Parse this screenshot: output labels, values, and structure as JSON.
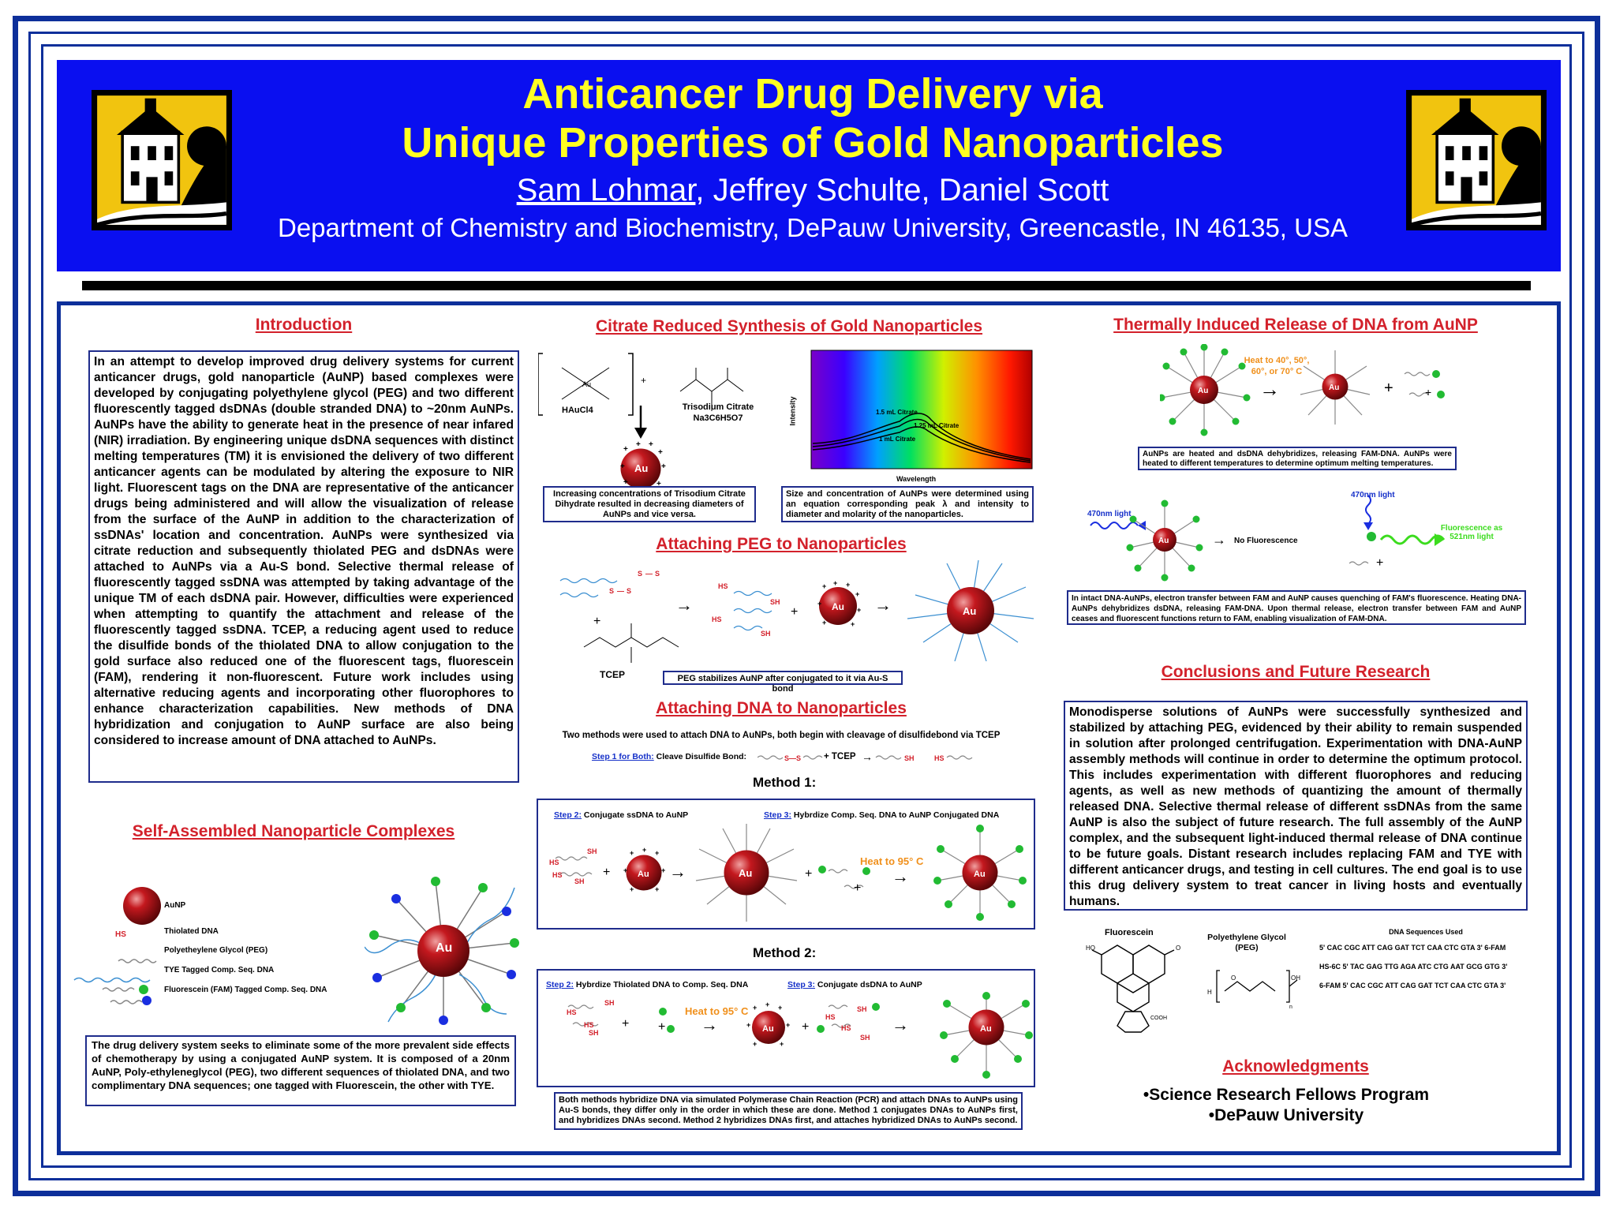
{
  "header": {
    "title_line1": "Anticancer Drug Delivery via",
    "title_line2": "Unique Properties of Gold Nanoparticles",
    "presenting_author": "Sam Lohmar",
    "other_authors": ", Jeffrey Schulte, Daniel Scott",
    "department": "Department of Chemistry and Biochemistry, DePauw University, Greencastle, IN 46135, USA"
  },
  "intro": {
    "title": "Introduction",
    "text": "In an attempt to develop improved drug delivery systems for current anticancer drugs, gold nanoparticle (AuNP) based complexes were developed by conjugating polyethylene glycol (PEG) and two different fluorescently tagged dsDNAs (double stranded DNA) to ~20nm AuNPs. AuNPs have the ability to generate heat in the presence of near infared (NIR) irradiation. By engineering unique dsDNA sequences with distinct melting temperatures (TM) it is envisioned the delivery of two different anticancer agents can be modulated by altering the exposure to NIR light. Fluorescent tags on the DNA are representative of the anticancer drugs being administered and will allow the visualization of release from the surface of the AuNP in addition to the characterization of ssDNAs' location and concentration. AuNPs were synthesized via citrate reduction and subsequently thiolated PEG and dsDNAs were attached to AuNPs via a Au-S bond. Selective thermal release of fluorescently tagged ssDNA was attempted by taking advantage of the unique TM of each dsDNA pair. However, difficulties were experienced when attempting to quantify the attachment and release of the fluorescently tagged ssDNA. TCEP, a reducing agent used to reduce the disulfide bonds of the thiolated DNA to allow conjugation to the gold surface also reduced one of the fluorescent tags, fluorescein (FAM), rendering it non-fluorescent. Future work includes using alternative reducing agents and incorporating other fluorophores to enhance characterization capabilities. New methods of DNA hybridization and conjugation to AuNP surface are also being considered to increase amount of DNA attached to AuNPs."
  },
  "self_assembled": {
    "title": "Self-Assembled Nanoparticle Complexes",
    "legend": [
      "AuNP",
      "Thiolated DNA",
      "Polyetheylene Glycol (PEG)",
      "TYE Tagged Comp. Seq. DNA",
      "Fluorescein (FAM) Tagged Comp. Seq. DNA"
    ],
    "hs": "HS",
    "au": "Au",
    "text": "The drug delivery system seeks to eliminate some of the more prevalent side effects of chemotherapy by using a conjugated AuNP system. It is composed of a 20nm AuNP, Poly-ethyleneglycol (PEG), two different sequences of thiolated DNA, and two complimentary DNA sequences; one tagged with Fluorescein, the other with TYE."
  },
  "synthesis": {
    "title": "Citrate Reduced Synthesis of Gold Nanoparticles",
    "haucl4": "HAuCl4",
    "citrate": "Trisodium Citrate",
    "citrate_formula": "Na3C6H5O7",
    "caption1": "Increasing concentrations of Trisodium Citrate Dihydrate resulted in decreasing diameters of AuNPs and vice versa.",
    "caption2": "Size and concentration of AuNPs were determined using an equation corresponding peak λ and intensity to diameter and molarity of the nanoparticles.",
    "xlabel": "Wavelength",
    "ylabel": "Intensity",
    "curve_labels": [
      "1.5 mL Citrate",
      "1.25 mL Citrate",
      "1 mL Citrate"
    ]
  },
  "peg": {
    "title": "Attaching PEG to Nanoparticles",
    "tcep": "TCEP",
    "caption": "PEG stabilizes AuNP after conjugated to it via Au-S bond"
  },
  "dna": {
    "title": "Attaching DNA to Nanoparticles",
    "intro": "Two methods were used to attach DNA to AuNPs, both begin with cleavage of disulfidebond via TCEP",
    "step1_label": "Step 1 for Both:",
    "step1_text": " Cleave Disulfide Bond:",
    "tcep_plus": "+ TCEP",
    "method1": "Method 1:",
    "m1_step2_label": "Step 2:",
    "m1_step2_text": " Conjugate ssDNA to AuNP",
    "m1_step3_label": "Step 3:",
    "m1_step3_text": " Hybrdize Comp. Seq. DNA to AuNP Conjugated DNA",
    "heat": "Heat to 95° C",
    "method2": "Method 2:",
    "m2_step2_label": "Step 2:",
    "m2_step2_text": " Hybrdize Thiolated  DNA to Comp. Seq. DNA",
    "m2_step3_label": "Step 3:",
    "m2_step3_text": " Conjugate dsDNA to AuNP",
    "caption": "Both methods hybridize DNA via simulated Polymerase Chain Reaction (PCR) and attach DNAs to AuNPs using Au-S bonds, they differ only in the order in which these are done. Method 1 conjugates DNAs to AuNPs first, and hybridizes DNAs second. Method 2 hybridizes DNAs first, and attaches hybridized DNAs to AuNPs second."
  },
  "thermal": {
    "title": "Thermally Induced Release of DNA from AuNP",
    "heat": "Heat to 40°, 50°, 60°, or 70° C",
    "caption1": "AuNPs are heated and dsDNA dehybridizes, releasing FAM-DNA. AuNPs were heated to different temperatures to determine optimum melting temperatures.",
    "light1": "470nm light",
    "no_fluor": "No Fluorescence",
    "light2": "470nm light",
    "fluor": "Fluorescence as 521nm light",
    "caption2": "In intact DNA-AuNPs, electron transfer between FAM and AuNP causes quenching of FAM's fluorescence. Heating DNA-AuNPs dehybridizes dsDNA, releasing FAM-DNA. Upon thermal release, electron transfer between FAM and AuNP ceases and fluorescent functions return to FAM, enabling visualization of FAM-DNA."
  },
  "conclusions": {
    "title": "Conclusions and Future Research",
    "text": "Monodisperse solutions of AuNPs were successfully synthesized and stabilized by attaching PEG, evidenced by their ability to remain suspended in solution after prolonged centrifugation. Experimentation with DNA-AuNP assembly methods will continue in order to determine the optimum protocol. This includes experimentation with different fluorophores and reducing agents, as well as new methods of quantizing the amount of thermally released DNA. Selective thermal release of different ssDNAs from the same AuNP is also the subject of future research. The full assembly of the AuNP complex, and the subsequent light-induced thermal release of DNA continue to be future goals. Distant research includes replacing FAM and TYE with different anticancer drugs, and testing in cell cultures. The end goal is to use this drug delivery system to treat cancer in living hosts and eventually humans.",
    "fluorescein": "Fluorescein",
    "peg_line1": "Polyethylene Glycol",
    "peg_line2": "(PEG)",
    "seq_title": "DNA Sequences Used",
    "sequences": [
      "5' CAC CGC ATT CAG GAT TCT CAA CTC GTA 3' 6-FAM",
      "HS-6C 5' TAC GAG TTG AGA ATC CTG AAT GCG GTG 3'",
      "6-FAM 5' CAC CGC ATT CAG GAT TCT CAA CTC GTA 3'"
    ]
  },
  "ack": {
    "title": "Acknowledgments",
    "items": [
      "•Science Research Fellows Program",
      "•DePauw University"
    ]
  },
  "colors": {
    "header_bg": "#0a0ff0",
    "title_yellow": "#ffff22",
    "section_red": "#d3212b",
    "frame_blue": "#0d2f9a",
    "gold_np": "#b8141b",
    "fam_green": "#22bb33",
    "tye_blue": "#1a2ee0",
    "heat_orange": "#f0901c"
  }
}
